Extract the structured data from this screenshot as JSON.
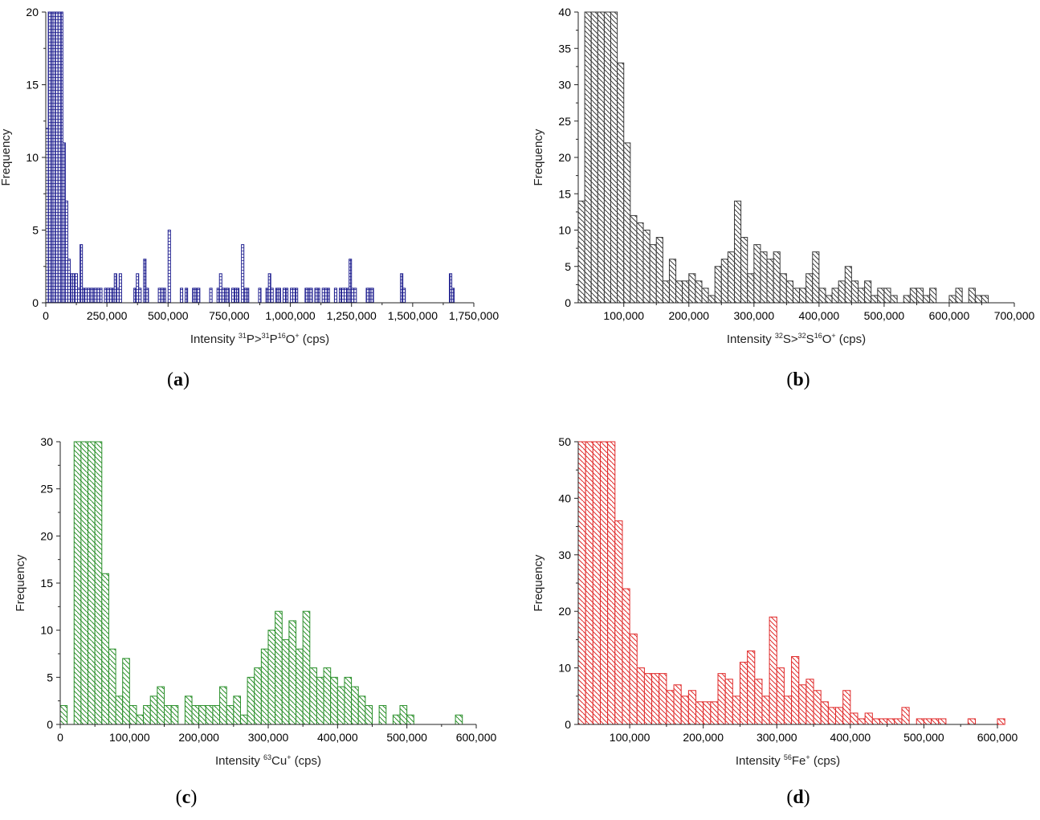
{
  "chart_data": [
    {
      "type": "bar",
      "panel": "(a)",
      "caption_letter": "a",
      "color": "#1f1f8f",
      "hatch": "grid",
      "xlabel": {
        "prefix": "Intensity ",
        "sup1": "31",
        "mid": "P>",
        "sup2": "31",
        "mid2": "P",
        "sup3": "16",
        "mid3": "O",
        "sup4": "+",
        "suffix": " (cps)"
      },
      "ylabel": "Frequency",
      "xlim": [
        0,
        1750000
      ],
      "ylim": [
        0,
        20
      ],
      "xticks": [
        0,
        250000,
        500000,
        750000,
        1000000,
        1250000,
        1500000,
        1750000
      ],
      "xtick_labels": [
        "0",
        "250,000",
        "500,000",
        "750,000",
        "1,000,000",
        "1,250,000",
        "1,500,000",
        "1,750,000"
      ],
      "yticks": [
        0,
        5,
        10,
        15,
        20
      ],
      "ytick_labels": [
        "0",
        "5",
        "10",
        "15",
        "20"
      ],
      "bin_width": 10000,
      "bin_start": 0,
      "values": [
        12,
        20,
        20,
        20,
        20,
        20,
        20,
        11,
        7,
        3,
        2,
        2,
        2,
        1,
        4,
        1,
        1,
        1,
        1,
        1,
        1,
        1,
        1,
        0,
        1,
        1,
        1,
        1,
        2,
        1,
        2,
        0,
        0,
        0,
        0,
        0,
        1,
        2,
        1,
        0,
        3,
        1,
        0,
        0,
        0,
        0,
        1,
        1,
        1,
        0,
        5,
        0,
        0,
        0,
        0,
        1,
        0,
        1,
        0,
        0,
        1,
        1,
        1,
        0,
        0,
        0,
        0,
        1,
        0,
        0,
        1,
        2,
        1,
        1,
        1,
        0,
        1,
        1,
        1,
        0,
        4,
        1,
        1,
        0,
        0,
        0,
        0,
        1,
        0,
        0,
        1,
        2,
        1,
        0,
        1,
        1,
        0,
        1,
        1,
        0,
        1,
        1,
        1,
        0,
        0,
        0,
        1,
        1,
        1,
        0,
        1,
        1,
        0,
        1,
        1,
        1,
        0,
        0,
        1,
        0,
        1,
        1,
        1,
        1,
        3,
        1,
        1,
        0,
        0,
        0,
        0,
        1,
        1,
        1,
        0,
        0,
        0,
        0,
        0,
        0,
        0,
        0,
        0,
        0,
        0,
        2,
        1,
        0,
        0,
        0,
        0,
        0,
        0,
        0,
        0,
        0,
        0,
        0,
        0,
        0,
        0,
        0,
        0,
        0,
        0,
        2,
        1
      ]
    },
    {
      "type": "bar",
      "panel": "(b)",
      "caption_letter": "b",
      "color": "#3a3a3a",
      "hatch": "diag",
      "xlabel": {
        "prefix": "Intensity ",
        "sup1": "32",
        "mid": "S>",
        "sup2": "32",
        "mid2": "S",
        "sup3": "16",
        "mid3": "O",
        "sup4": "+",
        "suffix": " (cps)"
      },
      "ylabel": "Frequency",
      "xlim": [
        30000,
        700000
      ],
      "ylim": [
        0,
        40
      ],
      "xticks": [
        100000,
        200000,
        300000,
        400000,
        500000,
        600000,
        700000
      ],
      "xtick_labels": [
        "100,000",
        "200,000",
        "300,000",
        "400,000",
        "500,000",
        "600,000",
        "700,000"
      ],
      "yticks": [
        0,
        5,
        10,
        15,
        20,
        25,
        30,
        35,
        40
      ],
      "ytick_labels": [
        "0",
        "5",
        "10",
        "15",
        "20",
        "25",
        "30",
        "35",
        "40"
      ],
      "bin_width": 10000,
      "bin_start": 30000,
      "values": [
        14,
        40,
        40,
        40,
        40,
        40,
        33,
        22,
        12,
        11,
        10,
        8,
        9,
        3,
        6,
        3,
        3,
        4,
        3,
        2,
        1,
        5,
        6,
        7,
        14,
        9,
        4,
        8,
        7,
        6,
        7,
        4,
        3,
        2,
        2,
        4,
        7,
        2,
        1,
        2,
        3,
        5,
        3,
        2,
        3,
        1,
        2,
        2,
        1,
        0,
        1,
        2,
        2,
        1,
        2,
        0,
        0,
        1,
        2,
        0,
        2,
        1,
        1
      ]
    },
    {
      "type": "bar",
      "panel": "(c)",
      "caption_letter": "c",
      "color": "#2a8f2a",
      "hatch": "diag",
      "xlabel": {
        "prefix": "Intensity ",
        "sup1": "63",
        "mid": "Cu",
        "sup2": "+",
        "mid2": "",
        "sup3": "",
        "mid3": "",
        "sup4": "",
        "suffix": " (cps)"
      },
      "ylabel": "Frequency",
      "xlim": [
        0,
        600000
      ],
      "ylim": [
        0,
        30
      ],
      "xticks": [
        0,
        100000,
        200000,
        300000,
        400000,
        500000,
        600000
      ],
      "xtick_labels": [
        "0",
        "100,000",
        "200,000",
        "300,000",
        "400,000",
        "500,000",
        "600,000"
      ],
      "yticks": [
        0,
        5,
        10,
        15,
        20,
        25,
        30
      ],
      "ytick_labels": [
        "0",
        "5",
        "10",
        "15",
        "20",
        "25",
        "30"
      ],
      "bin_width": 10000,
      "bin_start": 0,
      "values": [
        2,
        0,
        30,
        30,
        30,
        30,
        16,
        8,
        3,
        7,
        2,
        1,
        2,
        3,
        4,
        2,
        2,
        0,
        3,
        2,
        2,
        2,
        2,
        4,
        2,
        3,
        1,
        5,
        6,
        8,
        10,
        12,
        9,
        11,
        8,
        12,
        6,
        5,
        6,
        5,
        4,
        5,
        4,
        3,
        2,
        0,
        2,
        0,
        1,
        2,
        1,
        0,
        0,
        0,
        0,
        0,
        0,
        1
      ]
    },
    {
      "type": "bar",
      "panel": "(d)",
      "caption_letter": "d",
      "color": "#e02a2a",
      "hatch": "diag",
      "xlabel": {
        "prefix": "Intensity ",
        "sup1": "56",
        "mid": "Fe",
        "sup2": "+",
        "mid2": "",
        "sup3": "",
        "mid3": "",
        "sup4": "",
        "suffix": " (cps)"
      },
      "ylabel": "Frequency",
      "xlim": [
        30000,
        600000
      ],
      "ylim": [
        0,
        50
      ],
      "xticks": [
        100000,
        200000,
        300000,
        400000,
        500000,
        600000
      ],
      "xtick_labels": [
        "100,000",
        "200,000",
        "300,000",
        "400,000",
        "500,000",
        "600,000"
      ],
      "yticks": [
        0,
        10,
        20,
        30,
        40,
        50
      ],
      "ytick_labels": [
        "0",
        "10",
        "20",
        "30",
        "40",
        "50"
      ],
      "bin_width": 10000,
      "bin_start": 30000,
      "values": [
        50,
        50,
        50,
        50,
        50,
        36,
        24,
        16,
        10,
        9,
        9,
        9,
        6,
        7,
        5,
        6,
        4,
        4,
        4,
        9,
        8,
        5,
        11,
        13,
        8,
        5,
        19,
        10,
        5,
        12,
        7,
        8,
        6,
        4,
        3,
        3,
        6,
        2,
        1,
        2,
        1,
        1,
        1,
        1,
        3,
        0,
        1,
        1,
        1,
        1,
        0,
        0,
        0,
        1,
        0,
        0,
        0,
        1
      ]
    }
  ]
}
